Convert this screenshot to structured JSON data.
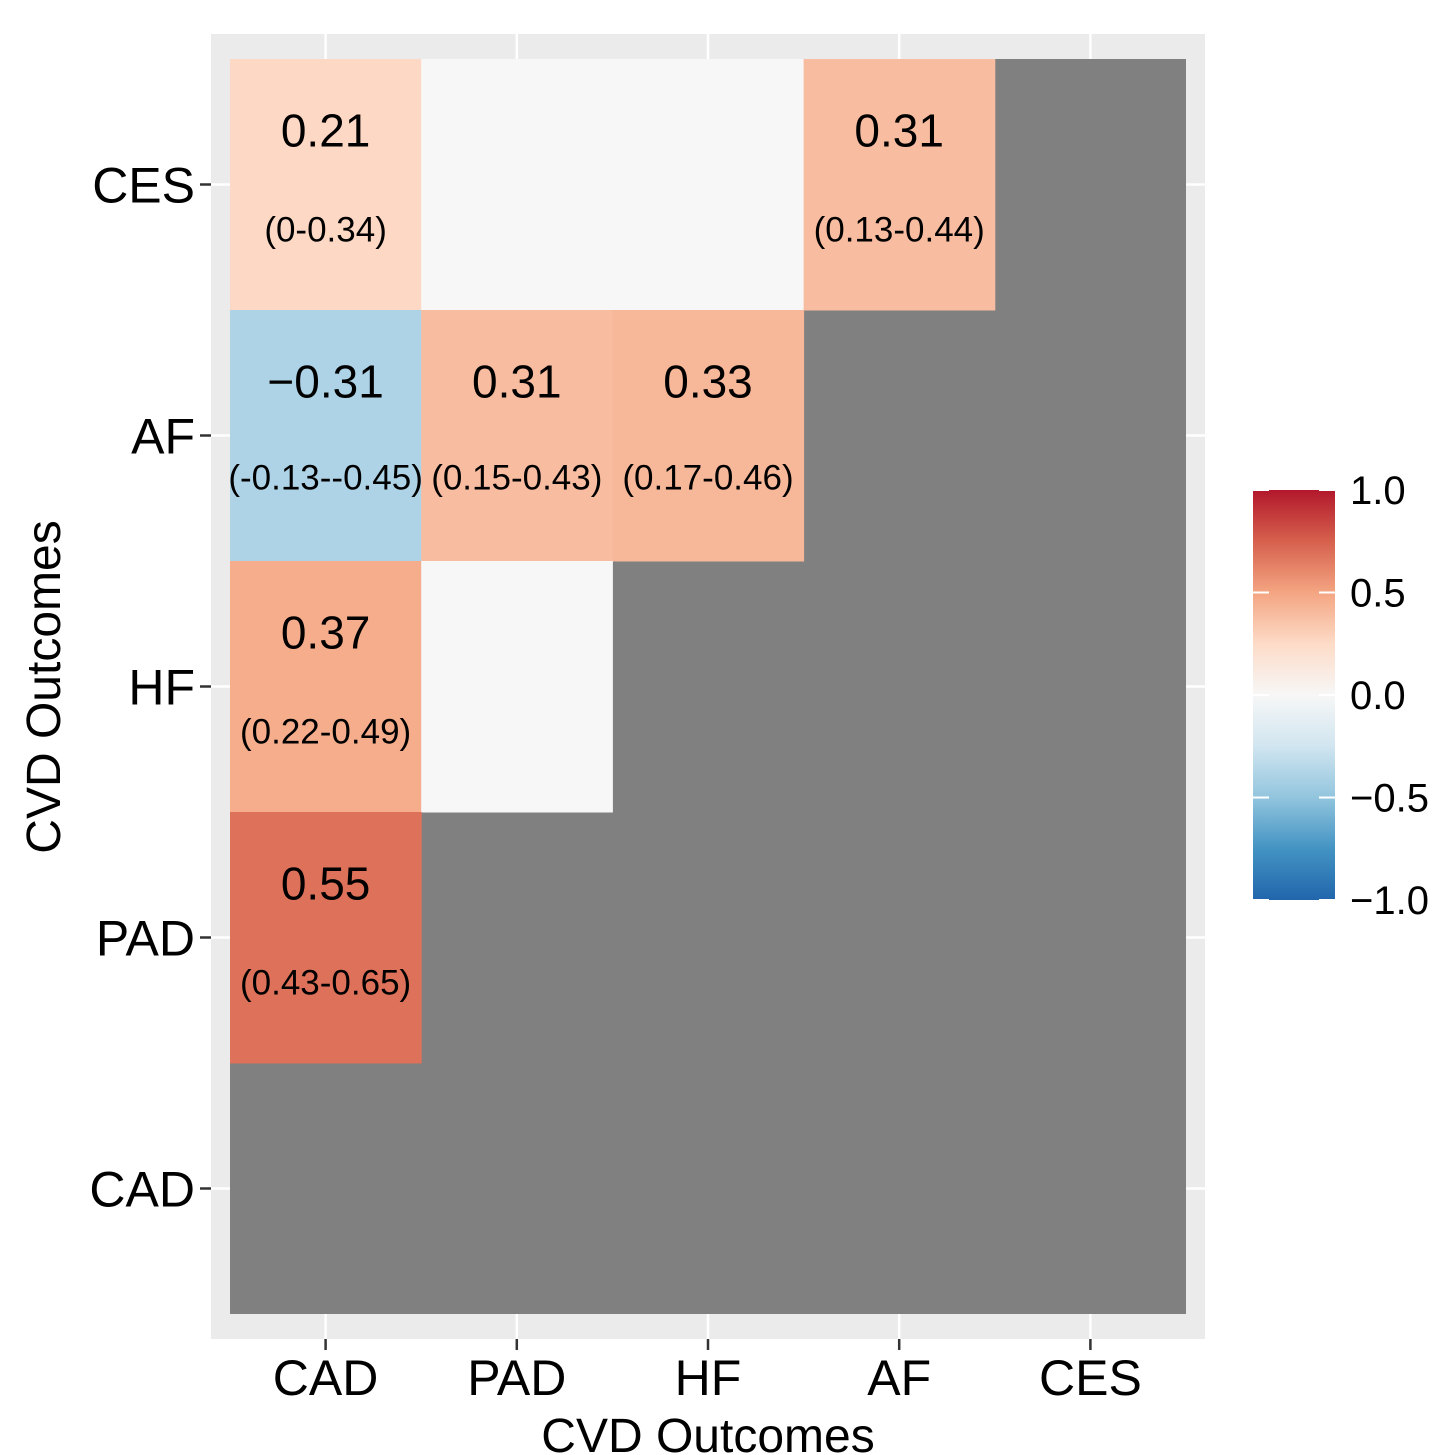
{
  "chart_data": {
    "type": "heatmap",
    "xlabel": "CVD Outcomes",
    "ylabel": "CVD Outcomes",
    "x_categories": [
      "CAD",
      "PAD",
      "HF",
      "AF",
      "CES"
    ],
    "y_categories": [
      "CAD",
      "PAD",
      "HF",
      "AF",
      "CES"
    ],
    "na_color": "#808080",
    "cells": [
      {
        "x": "CAD",
        "y": "CES",
        "value": 0.21,
        "label": "0.21",
        "ci": "(0-0.34)"
      },
      {
        "x": "PAD",
        "y": "CES",
        "value": 0.0,
        "label": "",
        "ci": ""
      },
      {
        "x": "HF",
        "y": "CES",
        "value": 0.0,
        "label": "",
        "ci": ""
      },
      {
        "x": "AF",
        "y": "CES",
        "value": 0.31,
        "label": "0.31",
        "ci": "(0.13-0.44)"
      },
      {
        "x": "CAD",
        "y": "AF",
        "value": -0.31,
        "label": "−0.31",
        "ci": "(-0.13--0.45)"
      },
      {
        "x": "PAD",
        "y": "AF",
        "value": 0.31,
        "label": "0.31",
        "ci": "(0.15-0.43)"
      },
      {
        "x": "HF",
        "y": "AF",
        "value": 0.33,
        "label": "0.33",
        "ci": "(0.17-0.46)"
      },
      {
        "x": "CAD",
        "y": "HF",
        "value": 0.37,
        "label": "0.37",
        "ci": "(0.22-0.49)"
      },
      {
        "x": "PAD",
        "y": "HF",
        "value": 0.0,
        "label": "",
        "ci": ""
      },
      {
        "x": "CAD",
        "y": "PAD",
        "value": 0.55,
        "label": "0.55",
        "ci": "(0.43-0.65)"
      }
    ],
    "legend": {
      "position": "right",
      "limits": [
        -1.0,
        1.0
      ],
      "breaks": [
        1.0,
        0.5,
        0.0,
        -0.5,
        -1.0
      ],
      "break_labels": [
        "1.0",
        "0.5",
        "0.0",
        "−0.5",
        "−1.0"
      ],
      "colors": [
        "#053061",
        "#2166ac",
        "#4393c3",
        "#92c5de",
        "#d1e5f0",
        "#f7f7f7",
        "#fddbc7",
        "#f4a582",
        "#d6604d",
        "#b2182b",
        "#67001f"
      ]
    }
  }
}
